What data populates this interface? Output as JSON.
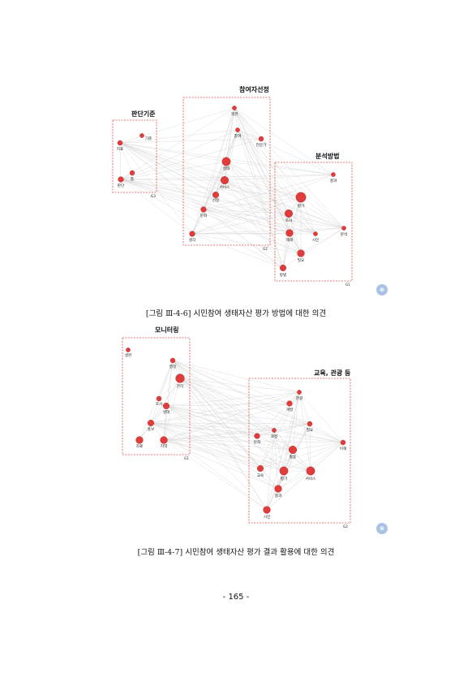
{
  "figure1": {
    "caption": "[그림 Ⅲ-4-6] 시민참여 생태자산 평가 방법에 대한 의견",
    "groups": [
      {
        "key": "a",
        "title": "판단기준",
        "label": "G3"
      },
      {
        "key": "b",
        "title": "참여자선정",
        "label": "G2"
      },
      {
        "key": "c",
        "title": "분석방법",
        "label": "G1"
      }
    ],
    "nodes": [
      {
        "id": "기준",
        "label": "기준",
        "size": 2.6
      },
      {
        "id": "지표",
        "label": "지표",
        "size": 3.0
      },
      {
        "id": "판단",
        "label": "판단",
        "size": 3.4
      },
      {
        "id": "틀",
        "label": "틀",
        "size": 3.0
      },
      {
        "id": "객관",
        "label": "객관",
        "size": 2.6
      },
      {
        "id": "참여",
        "label": "참여",
        "size": 2.6
      },
      {
        "id": "전문가",
        "label": "전문가",
        "size": 3.0
      },
      {
        "id": "생태",
        "label": "생태",
        "size": 5.2
      },
      {
        "id": "서비스",
        "label": "서비스",
        "size": 4.8
      },
      {
        "id": "선정",
        "label": "선정",
        "size": 3.8
      },
      {
        "id": "문화",
        "label": "문화",
        "size": 3.4
      },
      {
        "id": "생각",
        "label": "생각",
        "size": 3.4
      },
      {
        "id": "결과",
        "label": "결과",
        "size": 2.6
      },
      {
        "id": "평가",
        "label": "평가",
        "size": 6.2
      },
      {
        "id": "조사",
        "label": "조사",
        "size": 4.8
      },
      {
        "id": "시민",
        "label": "시민",
        "size": 2.6
      },
      {
        "id": "분석",
        "label": "분석",
        "size": 2.6
      },
      {
        "id": "재해",
        "label": "재해",
        "size": 4.4
      },
      {
        "id": "필요",
        "label": "필요",
        "size": 4.4
      },
      {
        "id": "방법",
        "label": "방법",
        "size": 3.8
      }
    ]
  },
  "figure2": {
    "caption": "[그림 Ⅲ-4-7] 시민참여 생태자산 평가 결과 활용에 대한 의견",
    "groups": [
      {
        "key": "a",
        "title": "모니터링",
        "label": "G1"
      },
      {
        "key": "b",
        "title": "교육, 관광 등",
        "label": "G2"
      }
    ],
    "nodes": [
      {
        "id": "생완",
        "label": "생완",
        "size": 2.6
      },
      {
        "id": "행정",
        "label": "행정",
        "size": 3.0
      },
      {
        "id": "관리",
        "label": "관리",
        "size": 5.4
      },
      {
        "id": "조사",
        "label": "조사",
        "size": 3.0
      },
      {
        "id": "생태",
        "label": "생태",
        "size": 3.8
      },
      {
        "id": "홍보",
        "label": "홍보",
        "size": 3.8
      },
      {
        "id": "자료",
        "label": "자료",
        "size": 4.4
      },
      {
        "id": "지역",
        "label": "지역",
        "size": 4.4
      },
      {
        "id": "관광",
        "label": "관광",
        "size": 2.6
      },
      {
        "id": "개발",
        "label": "개발",
        "size": 3.4
      },
      {
        "id": "필요",
        "label": "필요",
        "size": 3.0
      },
      {
        "id": "과정",
        "label": "과정",
        "size": 2.6
      },
      {
        "id": "문화",
        "label": "문화",
        "size": 3.4
      },
      {
        "id": "이해",
        "label": "이해",
        "size": 3.0
      },
      {
        "id": "활용",
        "label": "활용",
        "size": 4.8
      },
      {
        "id": "교육",
        "label": "교육",
        "size": 3.8
      },
      {
        "id": "평가",
        "label": "평가",
        "size": 5.2
      },
      {
        "id": "서비스",
        "label": "서비스",
        "size": 5.2
      },
      {
        "id": "결과",
        "label": "결과",
        "size": 4.4
      },
      {
        "id": "시민",
        "label": "시민",
        "size": 4.4
      }
    ]
  },
  "page_number": "- 165 -",
  "colors": {
    "node_fill": "#e03c3c",
    "node_stroke": "#b02020",
    "edge": "#cfcfcf",
    "group_border": "#d9534f"
  },
  "icons": {
    "logo": "kei-logo-icon"
  }
}
